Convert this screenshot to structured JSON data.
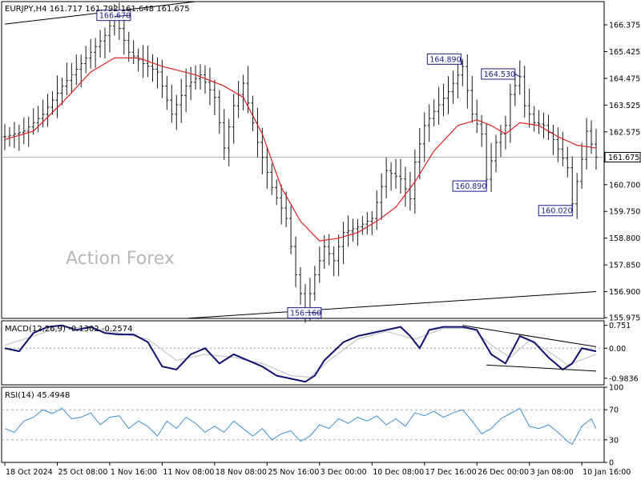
{
  "chart_data": [
    {
      "type": "candlestick",
      "title": "EURJPY,H4  161.717 161.792 161.648 161.675",
      "watermark": "Action Forex",
      "y_ticks": [
        "166.375",
        "165.425",
        "164.475",
        "163.525",
        "162.575",
        "160.700",
        "159.750",
        "158.800",
        "157.850",
        "156.900",
        "155.975"
      ],
      "ylim": [
        155.95,
        167.2
      ],
      "last_price": "161.675",
      "x_ticks": [
        "18 Oct 2024",
        "25 Oct 08:00",
        "1 Nov 16:00",
        "11 Nov 08:00",
        "18 Nov 08:00",
        "25 Nov 16:00",
        "3 Dec 00:00",
        "10 Dec 08:00",
        "17 Dec 16:00",
        "26 Dec 00:00",
        "3 Jan 08:00",
        "10 Jan 16:00"
      ],
      "price_path": [
        [
          0,
          162.4
        ],
        [
          4,
          162.6
        ],
        [
          8,
          163.2
        ],
        [
          12,
          164.2
        ],
        [
          17,
          165.2
        ],
        [
          21,
          166.0
        ],
        [
          23,
          166.67
        ],
        [
          26,
          165.4
        ],
        [
          29,
          165.0
        ],
        [
          32,
          164.7
        ],
        [
          35,
          163.2
        ],
        [
          38,
          164.2
        ],
        [
          41,
          164.6
        ],
        [
          44,
          163.8
        ],
        [
          46,
          162.0
        ],
        [
          48,
          163.5
        ],
        [
          50,
          164.3
        ],
        [
          53,
          162.2
        ],
        [
          56,
          160.6
        ],
        [
          59,
          159.5
        ],
        [
          61,
          157.5
        ],
        [
          63,
          156.16
        ],
        [
          65,
          157.5
        ],
        [
          67,
          158.5
        ],
        [
          69,
          158.0
        ],
        [
          71,
          159.0
        ],
        [
          74,
          159.2
        ],
        [
          77,
          159.5
        ],
        [
          80,
          161.2
        ],
        [
          83,
          160.9
        ],
        [
          85,
          160.2
        ],
        [
          86,
          161.5
        ],
        [
          88,
          162.8
        ],
        [
          90,
          163.3
        ],
        [
          93,
          164.0
        ],
        [
          96,
          164.89
        ],
        [
          98,
          163.2
        ],
        [
          100,
          162.5
        ],
        [
          101,
          160.89
        ],
        [
          103,
          162.2
        ],
        [
          105,
          162.8
        ],
        [
          106,
          163.9
        ],
        [
          108,
          164.53
        ],
        [
          109,
          163.5
        ],
        [
          111,
          162.9
        ],
        [
          113,
          162.8
        ],
        [
          115,
          162.3
        ],
        [
          118,
          161.3
        ],
        [
          119,
          160.02
        ],
        [
          121,
          161.6
        ],
        [
          122,
          162.6
        ],
        [
          124,
          161.675
        ]
      ],
      "ma_path": [
        [
          0,
          162.3
        ],
        [
          6,
          162.6
        ],
        [
          12,
          163.6
        ],
        [
          18,
          164.7
        ],
        [
          23,
          165.2
        ],
        [
          28,
          165.2
        ],
        [
          33,
          164.9
        ],
        [
          40,
          164.6
        ],
        [
          46,
          164.2
        ],
        [
          50,
          163.8
        ],
        [
          54,
          162.5
        ],
        [
          58,
          160.6
        ],
        [
          62,
          159.4
        ],
        [
          66,
          158.7
        ],
        [
          70,
          158.8
        ],
        [
          74,
          159.0
        ],
        [
          78,
          159.4
        ],
        [
          82,
          159.9
        ],
        [
          86,
          160.8
        ],
        [
          90,
          161.9
        ],
        [
          95,
          162.8
        ],
        [
          99,
          163.0
        ],
        [
          102,
          162.8
        ],
        [
          105,
          162.5
        ],
        [
          108,
          162.9
        ],
        [
          112,
          162.8
        ],
        [
          116,
          162.4
        ],
        [
          120,
          162.1
        ],
        [
          124,
          162.0
        ]
      ],
      "annotations": [
        {
          "label": "166.670",
          "x": 23,
          "y": 166.67
        },
        {
          "label": "164.890",
          "x": 96,
          "y": 164.89
        },
        {
          "label": "164.530",
          "x": 108,
          "y": 164.53
        },
        {
          "label": "160.890",
          "x": 101,
          "y": 160.89
        },
        {
          "label": "160.020",
          "x": 119,
          "y": 160.02
        },
        {
          "label": "156.160",
          "x": 63,
          "y": 156.16
        }
      ],
      "trendlines": [
        {
          "x1": 0,
          "y1": 166.4,
          "x2": 40,
          "y2": 167.2
        },
        {
          "x1": 38,
          "y1": 155.95,
          "x2": 124,
          "y2": 156.9
        }
      ],
      "x_count": 125
    },
    {
      "type": "line",
      "title": "MACD(12,26,9) -0.1302 -0.2574",
      "y_ticks": [
        "0.751",
        "0.00",
        "-0.9836"
      ],
      "ylim": [
        -1.2,
        0.9
      ],
      "macd_path": [
        [
          0,
          0.0
        ],
        [
          3,
          -0.1
        ],
        [
          6,
          0.5
        ],
        [
          9,
          0.7
        ],
        [
          12,
          0.75
        ],
        [
          15,
          0.6
        ],
        [
          18,
          0.7
        ],
        [
          21,
          0.5
        ],
        [
          24,
          0.45
        ],
        [
          27,
          0.45
        ],
        [
          30,
          0.2
        ],
        [
          33,
          -0.6
        ],
        [
          36,
          -0.7
        ],
        [
          39,
          -0.2
        ],
        [
          42,
          0.0
        ],
        [
          45,
          -0.5
        ],
        [
          48,
          -0.2
        ],
        [
          51,
          -0.4
        ],
        [
          54,
          -0.6
        ],
        [
          57,
          -0.9
        ],
        [
          60,
          -1.0
        ],
        [
          63,
          -1.1
        ],
        [
          65,
          -0.9
        ],
        [
          67,
          -0.4
        ],
        [
          69,
          -0.1
        ],
        [
          71,
          0.2
        ],
        [
          74,
          0.4
        ],
        [
          77,
          0.5
        ],
        [
          80,
          0.6
        ],
        [
          83,
          0.7
        ],
        [
          85,
          0.4
        ],
        [
          87,
          0.0
        ],
        [
          89,
          0.6
        ],
        [
          92,
          0.7
        ],
        [
          96,
          0.7
        ],
        [
          99,
          0.6
        ],
        [
          102,
          -0.2
        ],
        [
          105,
          -0.5
        ],
        [
          108,
          0.4
        ],
        [
          111,
          0.2
        ],
        [
          114,
          -0.3
        ],
        [
          117,
          -0.7
        ],
        [
          119,
          -0.5
        ],
        [
          121,
          0.0
        ],
        [
          124,
          -0.1
        ]
      ],
      "signal_path": [
        [
          0,
          0.1
        ],
        [
          6,
          0.4
        ],
        [
          12,
          0.7
        ],
        [
          18,
          0.65
        ],
        [
          24,
          0.5
        ],
        [
          30,
          0.3
        ],
        [
          36,
          -0.4
        ],
        [
          42,
          -0.2
        ],
        [
          48,
          -0.3
        ],
        [
          54,
          -0.5
        ],
        [
          60,
          -0.9
        ],
        [
          64,
          -0.95
        ],
        [
          68,
          -0.4
        ],
        [
          74,
          0.3
        ],
        [
          80,
          0.55
        ],
        [
          86,
          0.3
        ],
        [
          92,
          0.65
        ],
        [
          98,
          0.65
        ],
        [
          102,
          0.1
        ],
        [
          106,
          -0.3
        ],
        [
          110,
          0.25
        ],
        [
          114,
          -0.1
        ],
        [
          118,
          -0.55
        ],
        [
          124,
          -0.2
        ]
      ],
      "trendlines": [
        {
          "x1": 96,
          "y1": 0.75,
          "x2": 124,
          "y2": 0.05
        },
        {
          "x1": 101,
          "y1": -0.55,
          "x2": 124,
          "y2": -0.75
        }
      ]
    },
    {
      "type": "line",
      "title": "RSI(14) 45.4948",
      "y_ticks": [
        "100",
        "70",
        "30",
        "0"
      ],
      "ylim": [
        0,
        100
      ],
      "levels": [
        70,
        30
      ],
      "rsi_path": [
        [
          0,
          45
        ],
        [
          2,
          40
        ],
        [
          4,
          55
        ],
        [
          6,
          60
        ],
        [
          8,
          70
        ],
        [
          10,
          65
        ],
        [
          12,
          72
        ],
        [
          14,
          58
        ],
        [
          16,
          60
        ],
        [
          18,
          66
        ],
        [
          20,
          50
        ],
        [
          22,
          60
        ],
        [
          24,
          62
        ],
        [
          26,
          45
        ],
        [
          28,
          55
        ],
        [
          30,
          48
        ],
        [
          32,
          35
        ],
        [
          34,
          55
        ],
        [
          36,
          45
        ],
        [
          38,
          60
        ],
        [
          40,
          52
        ],
        [
          42,
          40
        ],
        [
          44,
          48
        ],
        [
          46,
          40
        ],
        [
          48,
          55
        ],
        [
          50,
          45
        ],
        [
          52,
          35
        ],
        [
          54,
          45
        ],
        [
          56,
          30
        ],
        [
          58,
          38
        ],
        [
          60,
          42
        ],
        [
          62,
          28
        ],
        [
          64,
          35
        ],
        [
          66,
          50
        ],
        [
          68,
          45
        ],
        [
          70,
          58
        ],
        [
          72,
          52
        ],
        [
          74,
          60
        ],
        [
          76,
          55
        ],
        [
          78,
          62
        ],
        [
          80,
          50
        ],
        [
          82,
          58
        ],
        [
          84,
          48
        ],
        [
          86,
          66
        ],
        [
          88,
          62
        ],
        [
          90,
          68
        ],
        [
          92,
          60
        ],
        [
          94,
          66
        ],
        [
          96,
          70
        ],
        [
          98,
          55
        ],
        [
          100,
          38
        ],
        [
          102,
          45
        ],
        [
          104,
          58
        ],
        [
          106,
          65
        ],
        [
          108,
          72
        ],
        [
          110,
          48
        ],
        [
          112,
          45
        ],
        [
          114,
          50
        ],
        [
          116,
          40
        ],
        [
          118,
          28
        ],
        [
          119,
          24
        ],
        [
          121,
          48
        ],
        [
          123,
          58
        ],
        [
          124,
          45
        ]
      ]
    }
  ]
}
